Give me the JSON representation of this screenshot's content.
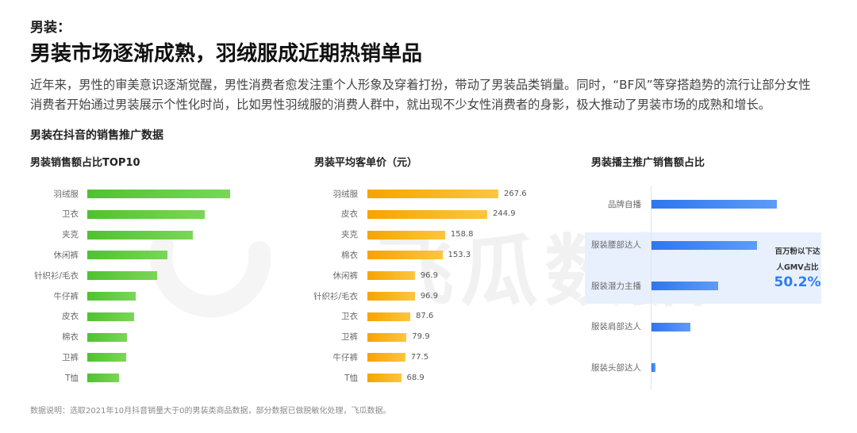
{
  "header": {
    "kicker": "男装：",
    "headline": "男装市场逐渐成熟，羽绒服成近期热销单品"
  },
  "intro": {
    "lines": [
      "近年来，男性的审美意识逐渐觉醒，男性消费者愈发注重个人形象及穿着打扮，带动了男装品类销量。同时，“BF风”等穿搭趋势的流行让部分女性",
      "消费者开始通过男装展示个性化时尚，比如男性羽绒服的消费人群中，就出现不少女性消费者的身影，极大推动了男装市场的成熟和增长。"
    ]
  },
  "section_title": "男装在抖音的销售推广数据",
  "chart_data": [
    {
      "type": "bar",
      "orientation": "horizontal",
      "title": "男装销售额占比TOP10",
      "categories": [
        "羽绒服",
        "卫衣",
        "夹克",
        "休闲裤",
        "针织衫/毛衣",
        "牛仔裤",
        "皮衣",
        "棉衣",
        "卫裤",
        "T恤"
      ],
      "values": [
        1.0,
        0.82,
        0.74,
        0.56,
        0.49,
        0.34,
        0.33,
        0.28,
        0.27,
        0.22
      ],
      "colors": [
        "#4fc22f",
        "#7bd657"
      ]
    },
    {
      "type": "bar",
      "orientation": "horizontal",
      "title": "男装平均客单价（元）",
      "categories": [
        "羽绒服",
        "皮衣",
        "夹克",
        "棉衣",
        "休闲裤",
        "针织衫/毛衣",
        "卫衣",
        "卫裤",
        "牛仔裤",
        "T恤"
      ],
      "values": [
        267.6,
        244.9,
        158.8,
        153.3,
        96.9,
        96.9,
        87.6,
        79.9,
        77.5,
        68.9
      ],
      "colors": [
        "#f6a400",
        "#fcc63f"
      ]
    },
    {
      "type": "bar",
      "orientation": "horizontal",
      "title": "男装播主推广销售额占比",
      "categories": [
        "品牌自播",
        "服装腰部达人",
        "服装潜力主播",
        "服装肩部达人",
        "服装头部达人"
      ],
      "values": [
        1.0,
        0.84,
        0.53,
        0.31,
        0.03
      ],
      "colors": [
        "#2f76ef",
        "#5d9cf6"
      ],
      "highlight": {
        "rows": [
          1,
          2
        ],
        "label_lines": [
          "百万粉以下达",
          "人GMV占比"
        ],
        "value": "50.2%",
        "background": "#e8f0fd",
        "value_color": "#2f7cf2"
      }
    }
  ],
  "footnote": "数据说明：选取2021年10月抖音销量大于0的男装类商品数据，部分数据已做脱敏化处理，飞瓜数据。",
  "watermark": {
    "text": "飞瓜数据"
  }
}
